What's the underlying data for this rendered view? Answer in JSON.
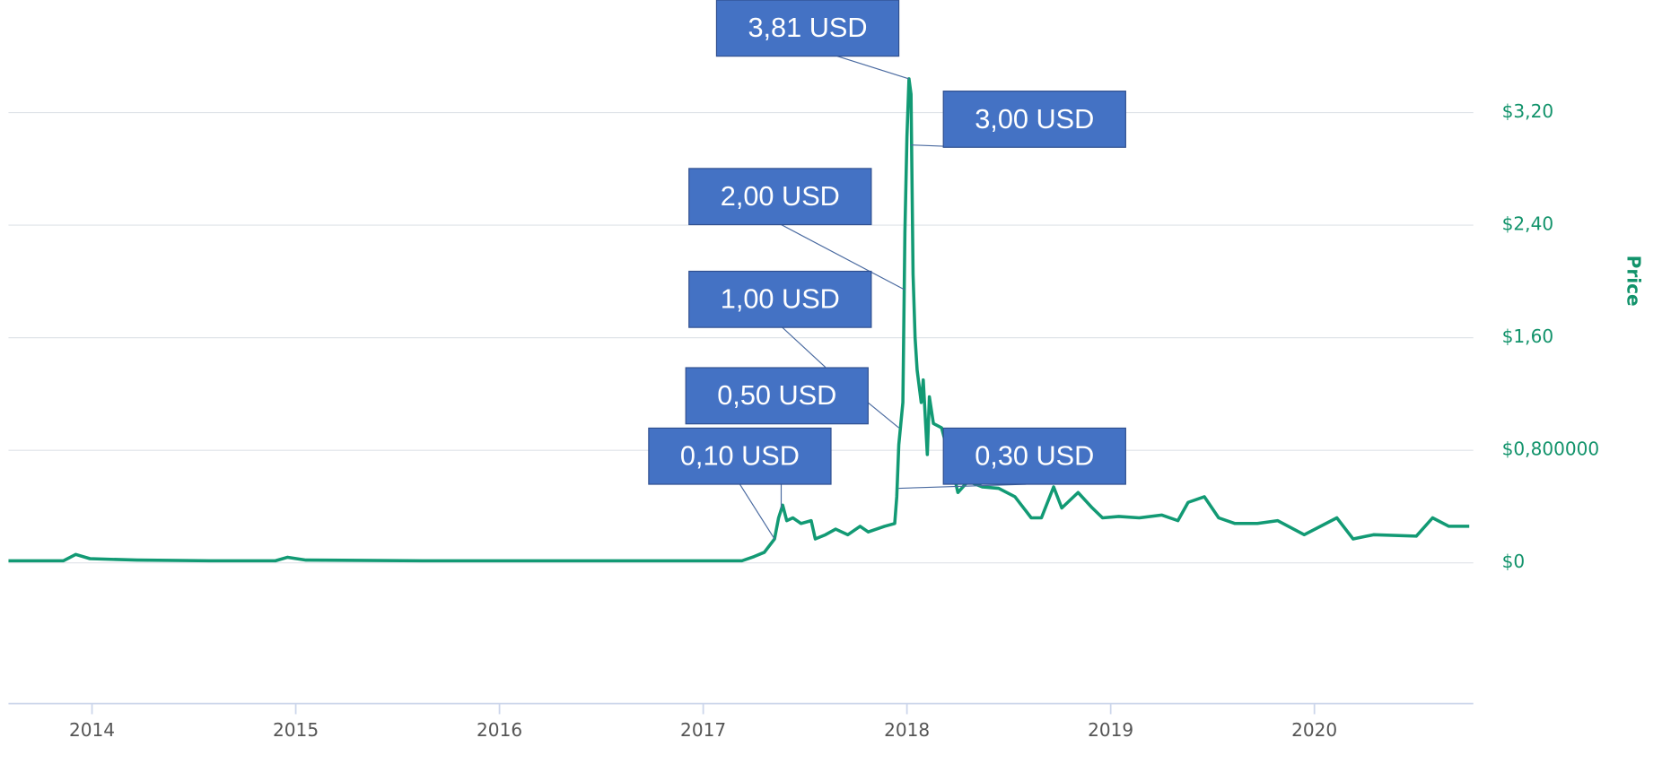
{
  "chart_data": {
    "type": "line",
    "y_label": "Price",
    "yaxis_side": "right",
    "color": "#129a74",
    "grid": true,
    "x": [
      2013.59,
      2013.86,
      2013.92,
      2013.99,
      2014.22,
      2014.58,
      2014.9,
      2014.96,
      2015.05,
      2015.62,
      2016.67,
      2017.19,
      2017.25,
      2017.3,
      2017.35,
      2017.37,
      2017.39,
      2017.41,
      2017.44,
      2017.48,
      2017.53,
      2017.55,
      2017.6,
      2017.65,
      2017.71,
      2017.77,
      2017.81,
      2017.89,
      2017.94,
      2017.95,
      2017.96,
      2017.98,
      2017.99,
      2018.0,
      2018.01,
      2018.02,
      2018.03,
      2018.04,
      2018.05,
      2018.07,
      2018.08,
      2018.1,
      2018.11,
      2018.13,
      2018.17,
      2018.22,
      2018.25,
      2018.3,
      2018.37,
      2018.45,
      2018.53,
      2018.61,
      2018.66,
      2018.72,
      2018.76,
      2018.84,
      2018.91,
      2018.96,
      2019.04,
      2019.14,
      2019.25,
      2019.33,
      2019.38,
      2019.46,
      2019.53,
      2019.61,
      2019.72,
      2019.82,
      2019.95,
      2020.11,
      2020.19,
      2020.29,
      2020.5,
      2020.58,
      2020.66,
      2020.76
    ],
    "values": [
      0.015,
      0.015,
      0.06,
      0.03,
      0.02,
      0.015,
      0.015,
      0.04,
      0.02,
      0.015,
      0.015,
      0.015,
      0.045,
      0.075,
      0.17,
      0.32,
      0.41,
      0.3,
      0.32,
      0.28,
      0.3,
      0.17,
      0.2,
      0.24,
      0.2,
      0.26,
      0.22,
      0.26,
      0.28,
      0.47,
      0.84,
      1.14,
      2.35,
      3.03,
      3.44,
      3.33,
      2.05,
      1.6,
      1.37,
      1.14,
      1.3,
      0.77,
      1.18,
      0.99,
      0.96,
      0.69,
      0.5,
      0.58,
      0.54,
      0.53,
      0.47,
      0.32,
      0.32,
      0.54,
      0.39,
      0.5,
      0.39,
      0.32,
      0.33,
      0.32,
      0.34,
      0.3,
      0.43,
      0.47,
      0.32,
      0.28,
      0.28,
      0.3,
      0.2,
      0.32,
      0.17,
      0.2,
      0.19,
      0.32,
      0.26,
      0.26
    ],
    "xlim": [
      2013.59,
      2020.78
    ],
    "xticks": [
      2014,
      2015,
      2016,
      2017,
      2018,
      2019,
      2020
    ],
    "ylim": [
      -1,
      4
    ],
    "yticks": [
      {
        "value": 0,
        "label": "$0"
      },
      {
        "value": 0.8,
        "label": "$0,800000"
      },
      {
        "value": 1.6,
        "label": "$1,60"
      },
      {
        "value": 2.4,
        "label": "$2,40"
      },
      {
        "value": 3.2,
        "label": "$3,20"
      }
    ],
    "annotations": [
      {
        "text": "3,81 USD",
        "x": 2018.01,
        "y": 3.44
      },
      {
        "text": "3,00 USD",
        "x": 2018.02,
        "y": 2.97
      },
      {
        "text": "2,00 USD",
        "x": 2017.99,
        "y": 1.94
      },
      {
        "text": "1,00 USD",
        "x": 2017.6,
        "y": 1.39
      },
      {
        "text": "0,50 USD",
        "x": 2017.96,
        "y": 0.96
      },
      {
        "text": "0,10 USD",
        "x": 2017.35,
        "y": 0.17
      },
      {
        "text": "0,30 USD",
        "x": 2017.96,
        "y": 0.53
      }
    ]
  }
}
